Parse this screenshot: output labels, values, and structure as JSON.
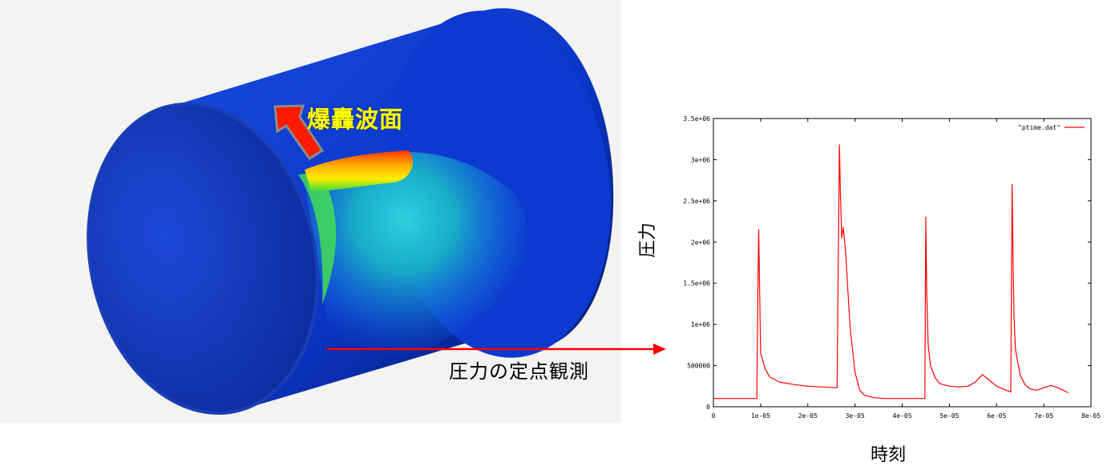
{
  "simulation": {
    "detonation_label": "爆轟波面",
    "observation_label": "圧力の定点観測",
    "colors": {
      "arrow": "#ff0000",
      "surface_low": "#0a2fb8",
      "surface_high": "#ff2a00"
    }
  },
  "chart_data": {
    "type": "line",
    "xlabel": "時刻",
    "ylabel": "圧力",
    "xlim": [
      0,
      8e-05
    ],
    "ylim": [
      0,
      3500000
    ],
    "x_ticks": [
      {
        "v": 0,
        "label": "0"
      },
      {
        "v": 1e-05,
        "label": "1e-05"
      },
      {
        "v": 2e-05,
        "label": "2e-05"
      },
      {
        "v": 3e-05,
        "label": "3e-05"
      },
      {
        "v": 4e-05,
        "label": "4e-05"
      },
      {
        "v": 5e-05,
        "label": "5e-05"
      },
      {
        "v": 6e-05,
        "label": "6e-05"
      },
      {
        "v": 7e-05,
        "label": "7e-05"
      },
      {
        "v": 8e-05,
        "label": "8e-05"
      }
    ],
    "y_ticks": [
      {
        "v": 0,
        "label": "0"
      },
      {
        "v": 500000,
        "label": "500000"
      },
      {
        "v": 1000000,
        "label": "1e+06"
      },
      {
        "v": 1500000,
        "label": "1.5e+06"
      },
      {
        "v": 2000000,
        "label": "2e+06"
      },
      {
        "v": 2500000,
        "label": "2.5e+06"
      },
      {
        "v": 3000000,
        "label": "3e+06"
      },
      {
        "v": 3500000,
        "label": "3.5e+06"
      }
    ],
    "legend_position": "top-right",
    "series": [
      {
        "name": "\"ptime.dat\"",
        "color": "#ff0000",
        "x": [
          0,
          9.2e-06,
          9.4e-06,
          9.6e-06,
          9.8e-06,
          1e-05,
          1.1e-05,
          1.2e-05,
          1.4e-05,
          1.7e-05,
          2e-05,
          2.3e-05,
          2.62e-05,
          2.65e-05,
          2.67e-05,
          2.69e-05,
          2.72e-05,
          2.75e-05,
          2.8e-05,
          2.85e-05,
          2.9e-05,
          3e-05,
          3.1e-05,
          3.2e-05,
          3.4e-05,
          3.6e-05,
          3.8e-05,
          4e-05,
          4.2e-05,
          4.48e-05,
          4.5e-05,
          4.52e-05,
          4.55e-05,
          4.6e-05,
          4.7e-05,
          4.8e-05,
          5e-05,
          5.2e-05,
          5.4e-05,
          5.55e-05,
          5.7e-05,
          5.85e-05,
          6e-05,
          6.2e-05,
          6.3e-05,
          6.33e-05,
          6.35e-05,
          6.37e-05,
          6.4e-05,
          6.5e-05,
          6.6e-05,
          6.7e-05,
          6.85e-05,
          7e-05,
          7.15e-05,
          7.3e-05,
          7.52e-05
        ],
        "y": [
          100000,
          100000,
          1300000,
          2150000,
          1400000,
          650000,
          450000,
          360000,
          300000,
          270000,
          250000,
          240000,
          230000,
          2000000,
          3180000,
          2600000,
          2050000,
          2180000,
          1900000,
          1400000,
          950000,
          420000,
          200000,
          140000,
          110000,
          100000,
          100000,
          100000,
          100000,
          100000,
          2300000,
          1400000,
          750000,
          500000,
          350000,
          280000,
          250000,
          240000,
          250000,
          300000,
          390000,
          320000,
          250000,
          200000,
          180000,
          2700000,
          1700000,
          1100000,
          700000,
          380000,
          270000,
          220000,
          200000,
          230000,
          260000,
          230000,
          170000
        ]
      }
    ]
  }
}
